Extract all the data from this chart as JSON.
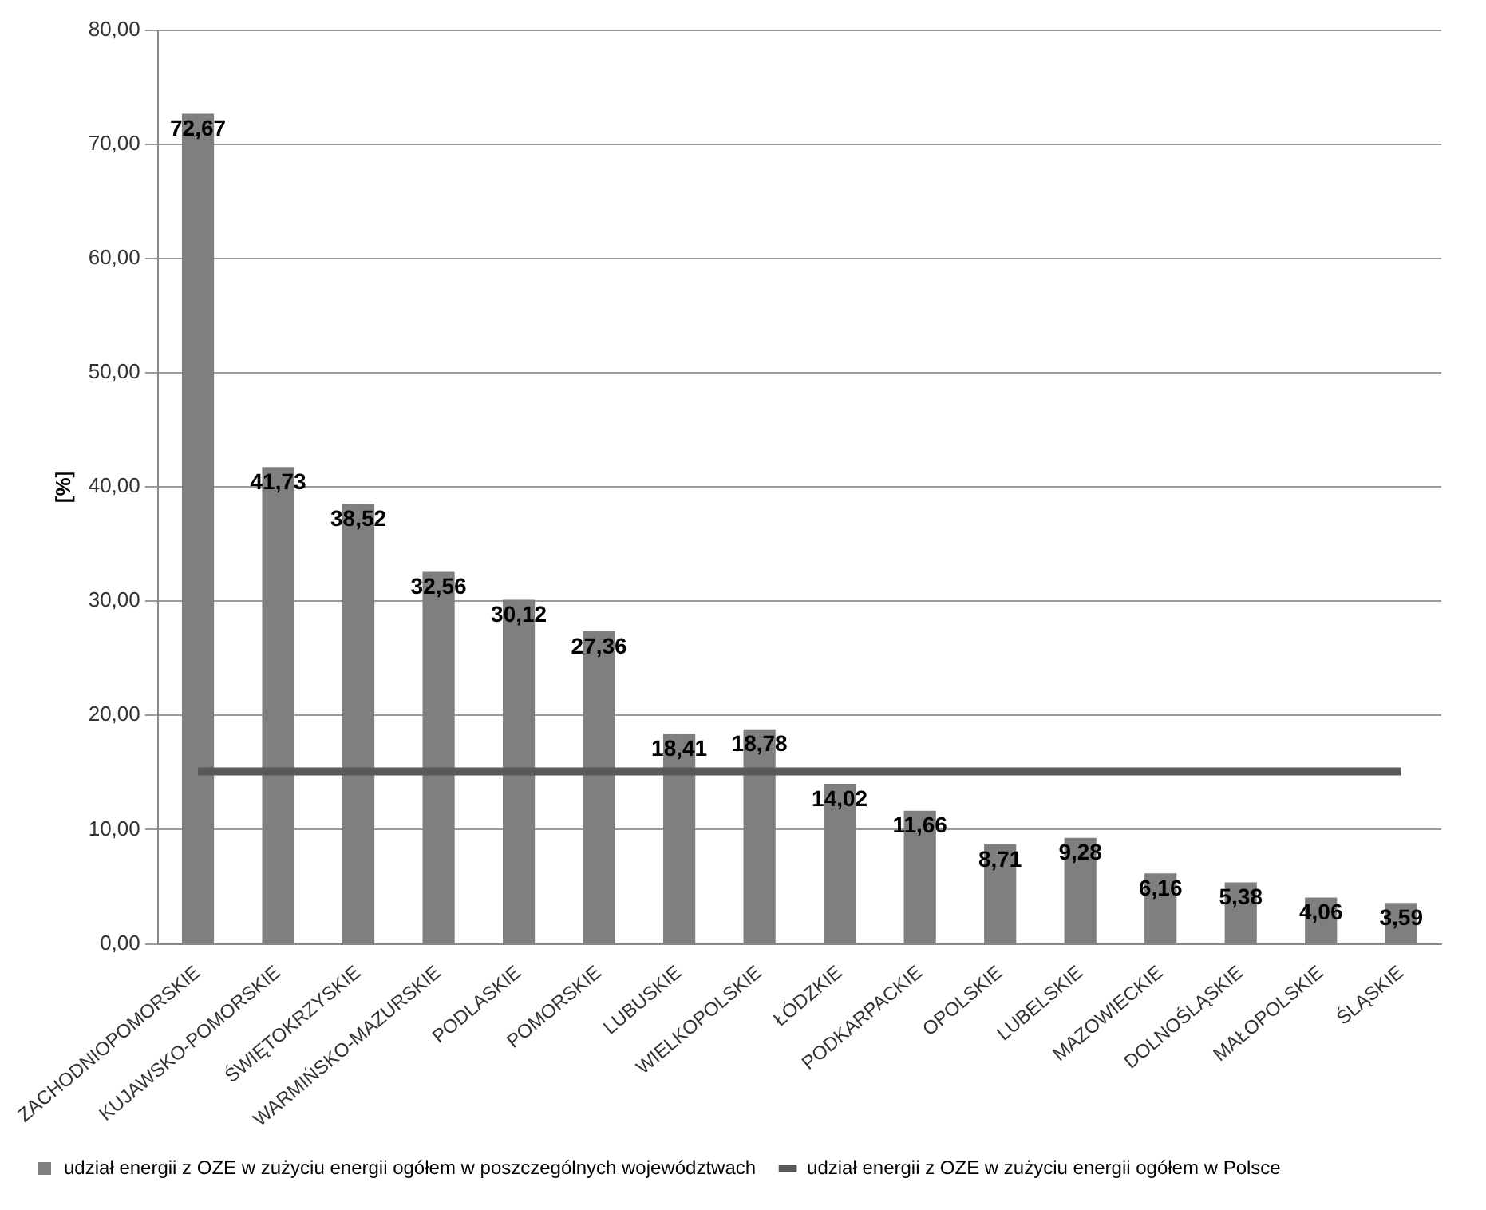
{
  "chart_data": {
    "type": "bar",
    "ylabel": "[%]",
    "categories": [
      "ZACHODNIOPOMORSKIE",
      "KUJAWSKO-POMORSKIE",
      "ŚWIĘTOKRZYSKIE",
      "WARMIŃSKO-MAZURSKIE",
      "PODLASKIE",
      "POMORSKIE",
      "LUBUSKIE",
      "WIELKOPOLSKIE",
      "ŁÓDZKIE",
      "PODKARPACKIE",
      "OPOLSKIE",
      "LUBELSKIE",
      "MAZOWIECKIE",
      "DOLNOŚLĄSKIE",
      "MAŁOPOLSKIE",
      "ŚLĄSKIE"
    ],
    "series": [
      {
        "name": "udział energii z OZE w zużyciu energii ogółem w poszczególnych województwach",
        "color": "#7f7f7f",
        "values": [
          72.67,
          41.73,
          38.52,
          32.56,
          30.12,
          27.36,
          18.41,
          18.78,
          14.02,
          11.66,
          8.71,
          9.28,
          6.16,
          5.38,
          4.06,
          3.59
        ],
        "value_labels": [
          "72,67",
          "41,73",
          "38,52",
          "32,56",
          "30,12",
          "27,36",
          "18,41",
          "18,78",
          "14,02",
          "11,66",
          "8,71",
          "9,28",
          "6,16",
          "5,38",
          "4,06",
          "3,59"
        ]
      },
      {
        "type": "line",
        "name": "udział energii z OZE w zużyciu energii ogółem w Polsce",
        "color": "#595959",
        "values": [
          15.1,
          15.1,
          15.1,
          15.1,
          15.1,
          15.1,
          15.1,
          15.1,
          15.1,
          15.1,
          15.1,
          15.1,
          15.1,
          15.1,
          15.1,
          15.1
        ]
      }
    ],
    "ylim": [
      0,
      80
    ],
    "yticks": [
      {
        "value": 0,
        "label": "0,00"
      },
      {
        "value": 10,
        "label": "10,00"
      },
      {
        "value": 20,
        "label": "20,00"
      },
      {
        "value": 30,
        "label": "30,00"
      },
      {
        "value": 40,
        "label": "40,00"
      },
      {
        "value": 50,
        "label": "50,00"
      },
      {
        "value": 60,
        "label": "60,00"
      },
      {
        "value": 70,
        "label": "70,00"
      },
      {
        "value": 80,
        "label": "80,00"
      }
    ],
    "grid": "y",
    "legend": "bottom",
    "marker": "none"
  }
}
